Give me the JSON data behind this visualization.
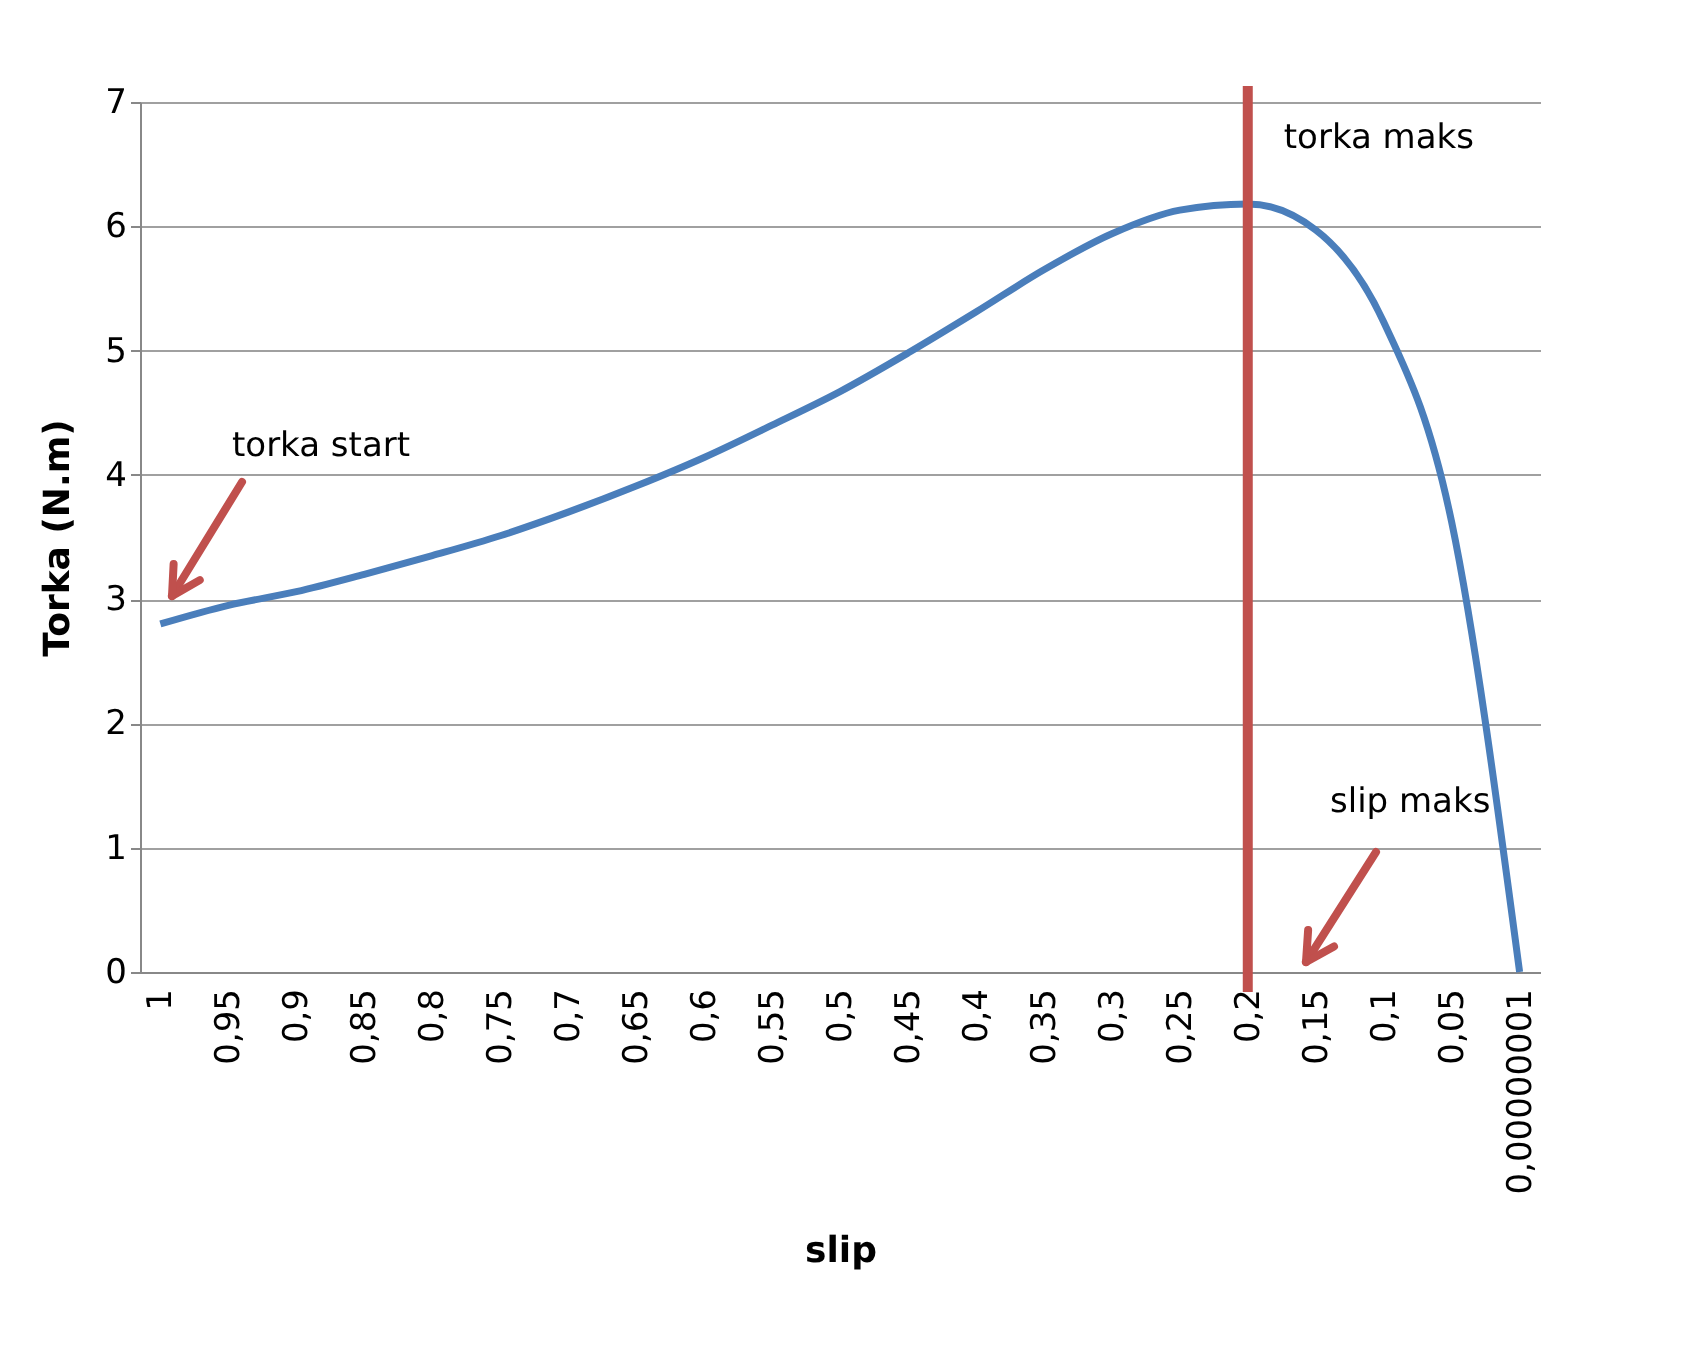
{
  "chart_data": {
    "type": "line",
    "xlabel": "slip",
    "ylabel": "Torka (N.m)",
    "categories": [
      "1",
      "0,95",
      "0,9",
      "0,85",
      "0,8",
      "0,75",
      "0,7",
      "0,65",
      "0,6",
      "0,55",
      "0,5",
      "0,45",
      "0,4",
      "0,35",
      "0,3",
      "0,25",
      "0,2",
      "0,15",
      "0,1",
      "0,05",
      "0,00000001"
    ],
    "series": [
      {
        "color": "#4a7ebb",
        "values": [
          2.8,
          2.95,
          3.06,
          3.2,
          3.35,
          3.51,
          3.7,
          3.91,
          4.14,
          4.4,
          4.67,
          4.98,
          5.31,
          5.65,
          5.94,
          6.13,
          6.18,
          5.97,
          5.23,
          3.62,
          0
        ]
      }
    ],
    "ylim": [
      0,
      7
    ],
    "yticks": [
      0,
      1,
      2,
      3,
      4,
      5,
      6,
      7
    ],
    "grid": "y",
    "marker": "none",
    "line_style": "solid",
    "ref_lines": [
      {
        "axis": "x",
        "value": "0,2",
        "label": "torka maks",
        "color": "#c0504d"
      }
    ],
    "annotations": [
      "torka start",
      "slip maks"
    ]
  }
}
